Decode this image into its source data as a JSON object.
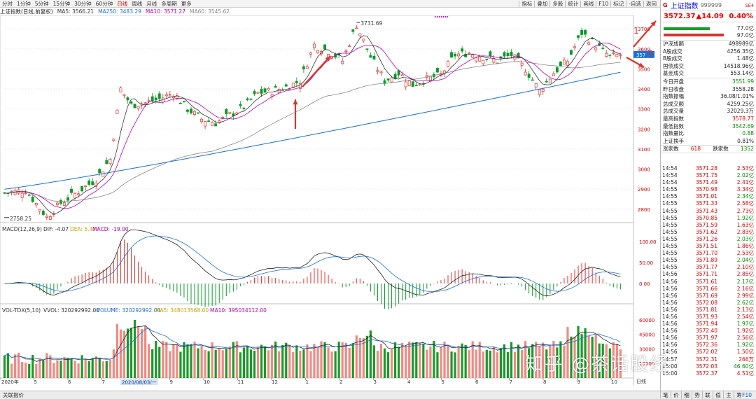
{
  "toolbar": {
    "timeframes": [
      "分时",
      "1分钟",
      "5分钟",
      "15分钟",
      "30分钟",
      "60分钟",
      "日线",
      "周线",
      "月线",
      "多周期",
      "更多"
    ],
    "active_timeframe": "日线",
    "right_buttons": [
      "指标",
      "叠加",
      "多股",
      "统计",
      "画线",
      "F10",
      "标记",
      "-自选",
      "返回"
    ]
  },
  "ma_header": {
    "index": "上证指数(日线,前复权)",
    "ma5": "MA5: 3566.21",
    "ma250": "MA250: 3483.29",
    "ma10": "MA10: 3571.27",
    "ma60": "MA60: 3545.62"
  },
  "price_chart": {
    "y_ticks": [
      3700,
      3600,
      3500,
      3400,
      3300,
      3200,
      3100,
      3000,
      2900,
      2800
    ],
    "y_range": [
      2740,
      3760
    ],
    "high_label": "3731.69",
    "low_label": "2758.25",
    "last_price_tag": "357",
    "annotations": [
      "1",
      "2"
    ]
  },
  "macd": {
    "header": "MACD(12,26,9)",
    "dif": "DIF: -4.07",
    "dea": "DEA: 5.43",
    "macd": "MACD: -19.00",
    "y_ticks": [
      "100.00",
      "50.00",
      "0.00"
    ]
  },
  "volume": {
    "header": "VOL-TDX(5,10)",
    "vvol": "VVOL: 320292992.00",
    "volume": "VOLUME: 320292992.00",
    "ma5": "MA5: 348013568.00",
    "ma10": "MA10: 395034112.00",
    "y_ticks": [
      "60000",
      "45000",
      "30000",
      "15000"
    ]
  },
  "x_axis": {
    "labels": [
      "2020年",
      "5",
      "6",
      "7",
      "8",
      "9",
      "10",
      "11",
      "12",
      "1",
      "2",
      "3",
      "4",
      "5",
      "6",
      "7",
      "8",
      "9",
      "10"
    ],
    "cursor_date": "2020/08/03/一",
    "period": "日线"
  },
  "bottom_tabs": [
    "管理",
    "另存为",
    "修定制"
  ],
  "status": "关联报价",
  "f10": "F10",
  "right_tabs": [
    "笔",
    "价",
    "细",
    "势",
    "联",
    "值",
    "主",
    "筹"
  ],
  "quote": {
    "g": "G",
    "name": "上证指数",
    "code": "999999",
    "tag": "SE4",
    "price": "3572.37",
    "change": "▲14.09",
    "pct": "0.40%",
    "bar1_label": "77.0亿",
    "bar2_label": "97.0亿",
    "rows1": [
      {
        "k": "沪深成额",
        "v": "498989亿",
        "c": ""
      },
      {
        "k": "A股成交",
        "v": "4256.35亿",
        "c": ""
      },
      {
        "k": "B股成交",
        "v": "1.48亿",
        "c": ""
      },
      {
        "k": "国债成交",
        "v": "14518.96亿",
        "c": ""
      },
      {
        "k": "基金成交",
        "v": "553.14亿",
        "c": ""
      }
    ],
    "rows2": [
      {
        "k": "今日开盘",
        "v": "3551.99",
        "c": "green"
      },
      {
        "k": "昨日收盘",
        "v": "3558.28",
        "c": ""
      },
      {
        "k": "指数振幅",
        "v": "36.08/1.01%",
        "c": ""
      },
      {
        "k": "总成交额",
        "v": "4259.25亿",
        "c": ""
      },
      {
        "k": "总成交量",
        "v": "32029.3万",
        "c": ""
      },
      {
        "k": "最高指数",
        "v": "3578.77",
        "c": "red"
      },
      {
        "k": "最低指数",
        "v": "3542.69",
        "c": "green"
      },
      {
        "k": "指数量比",
        "v": "0.88",
        "c": "green"
      },
      {
        "k": "上证换手",
        "v": "0.81%",
        "c": ""
      }
    ],
    "up_label": "涨家数",
    "up": "618",
    "down_label": "跌家数",
    "down": "1352"
  },
  "ticks": [
    [
      "14:54",
      "3571.28",
      "2.53亿"
    ],
    [
      "14:54",
      "3571.75",
      "2.02亿"
    ],
    [
      "14:54",
      "3571.49",
      "2.41亿"
    ],
    [
      "14:55",
      "3570.98",
      "3.34亿"
    ],
    [
      "14:55",
      "3571.01",
      "2.34亿"
    ],
    [
      "14:55",
      "3571.33",
      "2.58亿"
    ],
    [
      "14:55",
      "3571.43",
      "2.73亿"
    ],
    [
      "14:55",
      "3570.85",
      "1.92亿"
    ],
    [
      "14:55",
      "3571.59",
      "1.63亿"
    ],
    [
      "14:55",
      "3571.62",
      "2.83亿"
    ],
    [
      "14:55",
      "3571.26",
      "2.03亿"
    ],
    [
      "14:55",
      "3571.51",
      "1.86亿"
    ],
    [
      "14:55",
      "3571.70",
      "2.53亿"
    ],
    [
      "14:55",
      "3571.89",
      "2.04亿"
    ],
    [
      "14:55",
      "3571.77",
      "2.10亿"
    ],
    [
      "14:56",
      "3571.71",
      "2.85亿"
    ],
    [
      "14:56",
      "3571.61",
      "2.17亿"
    ],
    [
      "14:56",
      "3571.66",
      "2.16亿"
    ],
    [
      "14:56",
      "3571.69",
      "2.99亿"
    ],
    [
      "14:56",
      "3572.08",
      "2.62亿"
    ],
    [
      "14:56",
      "3571.81",
      "2.13亿"
    ],
    [
      "14:56",
      "3571.93",
      "2.54亿"
    ],
    [
      "14:56",
      "3571.94",
      "1.97亿"
    ],
    [
      "14:56",
      "3572.40",
      "1.92亿"
    ],
    [
      "14:56",
      "3571.97",
      "2.56亿"
    ],
    [
      "14:56",
      "3572.36",
      "1.92亿"
    ],
    [
      "14:56",
      "3572.02",
      "1.50亿"
    ],
    [
      "14:57",
      "3572.31",
      "266万"
    ],
    [
      "15:00",
      "3572.03",
      "46.60亿"
    ],
    [
      "15:00",
      "3572.37",
      "4.51亿"
    ]
  ],
  "watermark": "知乎 @茶话股经",
  "colors": {
    "up": "#e0312a",
    "down": "#0a9a2a",
    "ma5": "#333333",
    "ma10": "#b400b4",
    "ma60": "#888888",
    "ma250": "#1c6fd6"
  }
}
